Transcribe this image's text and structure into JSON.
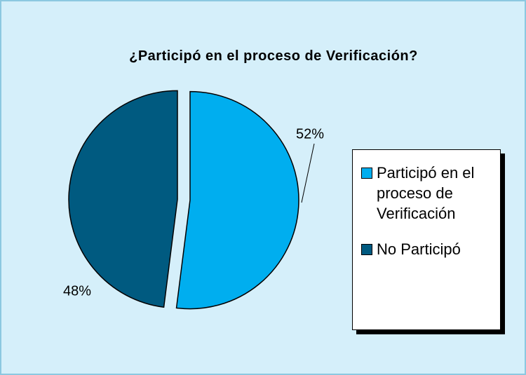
{
  "chart_data": {
    "type": "pie",
    "title": "¿Participó en el proceso de Verificación?",
    "categories": [
      "Participó en el proceso de Verificación",
      "No Participó"
    ],
    "values": [
      52,
      48
    ],
    "value_labels": [
      "52%",
      "48%"
    ],
    "colors": [
      "#00aeef",
      "#005a80"
    ],
    "legend": "right"
  }
}
